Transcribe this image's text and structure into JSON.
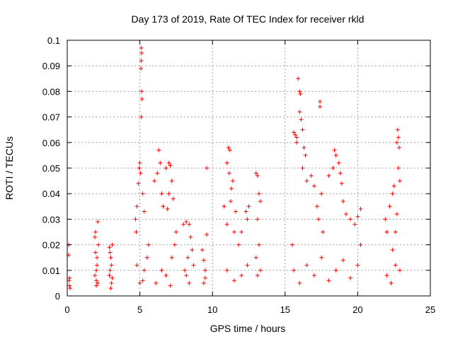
{
  "chart_data": {
    "type": "scatter",
    "title": "Day 173 of 2019, Rate Of TEC Index for receiver rkld",
    "xlabel": "GPS time / hours",
    "ylabel": "ROTI / TECUs",
    "xlim": [
      0,
      25
    ],
    "ylim": [
      0,
      0.1
    ],
    "xticks": [
      0,
      5,
      10,
      15,
      20,
      25
    ],
    "xtick_labels": [
      "0",
      "5",
      "10",
      "15",
      "20",
      "25"
    ],
    "yticks": [
      0,
      0.01,
      0.02,
      0.03,
      0.04,
      0.05,
      0.06,
      0.07,
      0.08,
      0.09,
      0.1
    ],
    "ytick_labels": [
      "0",
      "0.01",
      "0.02",
      "0.03",
      "0.04",
      "0.05",
      "0.06",
      "0.07",
      "0.08",
      "0.09",
      "0.1"
    ],
    "grid": true,
    "marker": "+",
    "color": "#ff0000",
    "series": [
      {
        "name": "ROTI",
        "points": [
          [
            0.1,
            0.02
          ],
          [
            0.1,
            0.016
          ],
          [
            0.15,
            0.007
          ],
          [
            0.15,
            0.004
          ],
          [
            0.2,
            0.003
          ],
          [
            0.12,
            0.006
          ],
          [
            1.9,
            0.023
          ],
          [
            1.95,
            0.025
          ],
          [
            2.0,
            0.01
          ],
          [
            2.05,
            0.015
          ],
          [
            2.1,
            0.029
          ],
          [
            2.0,
            0.006
          ],
          [
            1.9,
            0.008
          ],
          [
            2.05,
            0.012
          ],
          [
            2.1,
            0.005
          ],
          [
            1.95,
            0.017
          ],
          [
            2.15,
            0.02
          ],
          [
            2.0,
            0.004
          ],
          [
            2.9,
            0.019
          ],
          [
            3.0,
            0.015
          ],
          [
            2.95,
            0.01
          ],
          [
            3.05,
            0.005
          ],
          [
            3.1,
            0.02
          ],
          [
            2.9,
            0.008
          ],
          [
            3.0,
            0.003
          ],
          [
            3.05,
            0.012
          ],
          [
            2.95,
            0.017
          ],
          [
            3.1,
            0.007
          ],
          [
            4.8,
            0.035
          ],
          [
            4.9,
            0.044
          ],
          [
            4.95,
            0.05
          ],
          [
            5.0,
            0.052
          ],
          [
            5.05,
            0.048
          ],
          [
            5.1,
            0.097
          ],
          [
            5.12,
            0.095
          ],
          [
            5.1,
            0.092
          ],
          [
            5.08,
            0.089
          ],
          [
            5.12,
            0.08
          ],
          [
            5.15,
            0.077
          ],
          [
            5.1,
            0.07
          ],
          [
            4.7,
            0.03
          ],
          [
            4.75,
            0.025
          ],
          [
            5.2,
            0.04
          ],
          [
            5.3,
            0.033
          ],
          [
            5.2,
            0.006
          ],
          [
            5.3,
            0.01
          ],
          [
            5.5,
            0.015
          ],
          [
            5.0,
            0.005
          ],
          [
            4.8,
            0.012
          ],
          [
            5.6,
            0.02
          ],
          [
            6.0,
            0.045
          ],
          [
            6.2,
            0.048
          ],
          [
            6.3,
            0.057
          ],
          [
            6.4,
            0.052
          ],
          [
            6.5,
            0.04
          ],
          [
            6.6,
            0.035
          ],
          [
            6.8,
            0.05
          ],
          [
            7.0,
            0.052
          ],
          [
            7.1,
            0.051
          ],
          [
            7.2,
            0.045
          ],
          [
            7.0,
            0.04
          ],
          [
            6.9,
            0.034
          ],
          [
            7.3,
            0.038
          ],
          [
            7.5,
            0.025
          ],
          [
            6.1,
            0.005
          ],
          [
            6.5,
            0.01
          ],
          [
            6.8,
            0.008
          ],
          [
            7.2,
            0.015
          ],
          [
            7.4,
            0.02
          ],
          [
            7.1,
            0.004
          ],
          [
            8.0,
            0.028
          ],
          [
            8.2,
            0.029
          ],
          [
            8.4,
            0.028
          ],
          [
            8.5,
            0.023
          ],
          [
            8.3,
            0.015
          ],
          [
            8.1,
            0.01
          ],
          [
            8.6,
            0.018
          ],
          [
            8.4,
            0.005
          ],
          [
            8.2,
            0.008
          ],
          [
            8.7,
            0.012
          ],
          [
            9.3,
            0.018
          ],
          [
            9.4,
            0.014
          ],
          [
            9.5,
            0.01
          ],
          [
            9.6,
            0.05
          ],
          [
            9.6,
            0.024
          ],
          [
            9.5,
            0.007
          ],
          [
            9.4,
            0.005
          ],
          [
            10.8,
            0.035
          ],
          [
            11.0,
            0.052
          ],
          [
            11.1,
            0.058
          ],
          [
            11.2,
            0.057
          ],
          [
            11.15,
            0.048
          ],
          [
            11.3,
            0.042
          ],
          [
            11.25,
            0.037
          ],
          [
            11.4,
            0.045
          ],
          [
            11.0,
            0.028
          ],
          [
            11.5,
            0.025
          ],
          [
            11.6,
            0.033
          ],
          [
            11.8,
            0.02
          ],
          [
            12.0,
            0.025
          ],
          [
            12.3,
            0.033
          ],
          [
            12.5,
            0.035
          ],
          [
            12.4,
            0.03
          ],
          [
            11.0,
            0.01
          ],
          [
            11.5,
            0.006
          ],
          [
            12.0,
            0.008
          ],
          [
            12.4,
            0.012
          ],
          [
            13.0,
            0.048
          ],
          [
            13.1,
            0.047
          ],
          [
            13.2,
            0.04
          ],
          [
            13.3,
            0.037
          ],
          [
            13.1,
            0.03
          ],
          [
            13.2,
            0.02
          ],
          [
            13.0,
            0.015
          ],
          [
            13.3,
            0.01
          ],
          [
            13.1,
            0.008
          ],
          [
            15.5,
            0.02
          ],
          [
            15.6,
            0.064
          ],
          [
            15.7,
            0.063
          ],
          [
            15.8,
            0.062
          ],
          [
            15.8,
            0.06
          ],
          [
            15.9,
            0.085
          ],
          [
            16.0,
            0.08
          ],
          [
            16.05,
            0.079
          ],
          [
            16.0,
            0.072
          ],
          [
            16.1,
            0.069
          ],
          [
            16.2,
            0.065
          ],
          [
            16.3,
            0.058
          ],
          [
            16.4,
            0.055
          ],
          [
            16.5,
            0.045
          ],
          [
            16.2,
            0.05
          ],
          [
            16.8,
            0.047
          ],
          [
            17.0,
            0.043
          ],
          [
            17.2,
            0.035
          ],
          [
            17.4,
            0.076
          ],
          [
            17.4,
            0.074
          ],
          [
            17.5,
            0.04
          ],
          [
            17.3,
            0.03
          ],
          [
            17.6,
            0.025
          ],
          [
            18.0,
            0.047
          ],
          [
            18.3,
            0.05
          ],
          [
            18.4,
            0.057
          ],
          [
            18.5,
            0.055
          ],
          [
            18.7,
            0.052
          ],
          [
            18.8,
            0.048
          ],
          [
            18.9,
            0.044
          ],
          [
            19.0,
            0.037
          ],
          [
            19.2,
            0.032
          ],
          [
            19.5,
            0.03
          ],
          [
            19.8,
            0.028
          ],
          [
            20.0,
            0.031
          ],
          [
            20.2,
            0.034
          ],
          [
            15.6,
            0.01
          ],
          [
            16.0,
            0.005
          ],
          [
            16.5,
            0.012
          ],
          [
            17.0,
            0.008
          ],
          [
            17.5,
            0.015
          ],
          [
            18.0,
            0.006
          ],
          [
            18.5,
            0.01
          ],
          [
            19.0,
            0.014
          ],
          [
            19.5,
            0.007
          ],
          [
            20.0,
            0.012
          ],
          [
            20.2,
            0.02
          ],
          [
            21.9,
            0.03
          ],
          [
            22.0,
            0.025
          ],
          [
            22.2,
            0.035
          ],
          [
            22.4,
            0.04
          ],
          [
            22.5,
            0.043
          ],
          [
            22.7,
            0.06
          ],
          [
            22.75,
            0.065
          ],
          [
            22.8,
            0.062
          ],
          [
            22.85,
            0.058
          ],
          [
            22.8,
            0.05
          ],
          [
            22.9,
            0.045
          ],
          [
            22.7,
            0.032
          ],
          [
            22.6,
            0.025
          ],
          [
            22.0,
            0.008
          ],
          [
            22.3,
            0.005
          ],
          [
            22.6,
            0.012
          ],
          [
            22.9,
            0.01
          ],
          [
            22.4,
            0.018
          ]
        ]
      }
    ]
  }
}
